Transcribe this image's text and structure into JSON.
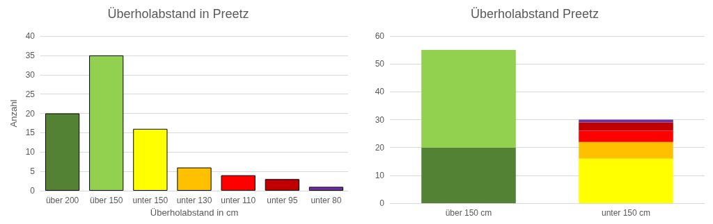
{
  "chart_data": [
    {
      "type": "bar",
      "title": "Überholabstand in Preetz",
      "xlabel": "Überholabstand in cm",
      "ylabel": "Anzahl",
      "categories": [
        "über 200",
        "über 150",
        "unter 150",
        "unter 130",
        "unter 110",
        "unter 95",
        "unter 80"
      ],
      "values": [
        20,
        35,
        16,
        6,
        4,
        3,
        1
      ],
      "colors": [
        "#548235",
        "#92d050",
        "#ffff00",
        "#ffc000",
        "#ff0000",
        "#c00000",
        "#7030a0"
      ],
      "ylim": [
        0,
        40
      ],
      "yticks": [
        0,
        5,
        10,
        15,
        20,
        25,
        30,
        35,
        40
      ],
      "grid": "y"
    },
    {
      "type": "bar",
      "title": "Überholabstand Preetz",
      "categories": [
        "über 150 cm",
        "unter 150 cm"
      ],
      "stacked": true,
      "series": [
        {
          "color": "#548235",
          "values": [
            20,
            null
          ]
        },
        {
          "color": "#92d050",
          "values": [
            35,
            null
          ]
        },
        {
          "color": "#ffff00",
          "values": [
            null,
            16
          ]
        },
        {
          "color": "#ffc000",
          "values": [
            null,
            6
          ]
        },
        {
          "color": "#ff0000",
          "values": [
            null,
            4
          ]
        },
        {
          "color": "#c00000",
          "values": [
            null,
            3
          ]
        },
        {
          "color": "#7030a0",
          "values": [
            null,
            1
          ]
        }
      ],
      "ylim": [
        0,
        60
      ],
      "yticks": [
        0,
        10,
        20,
        30,
        40,
        50,
        60
      ],
      "grid": "y"
    }
  ]
}
